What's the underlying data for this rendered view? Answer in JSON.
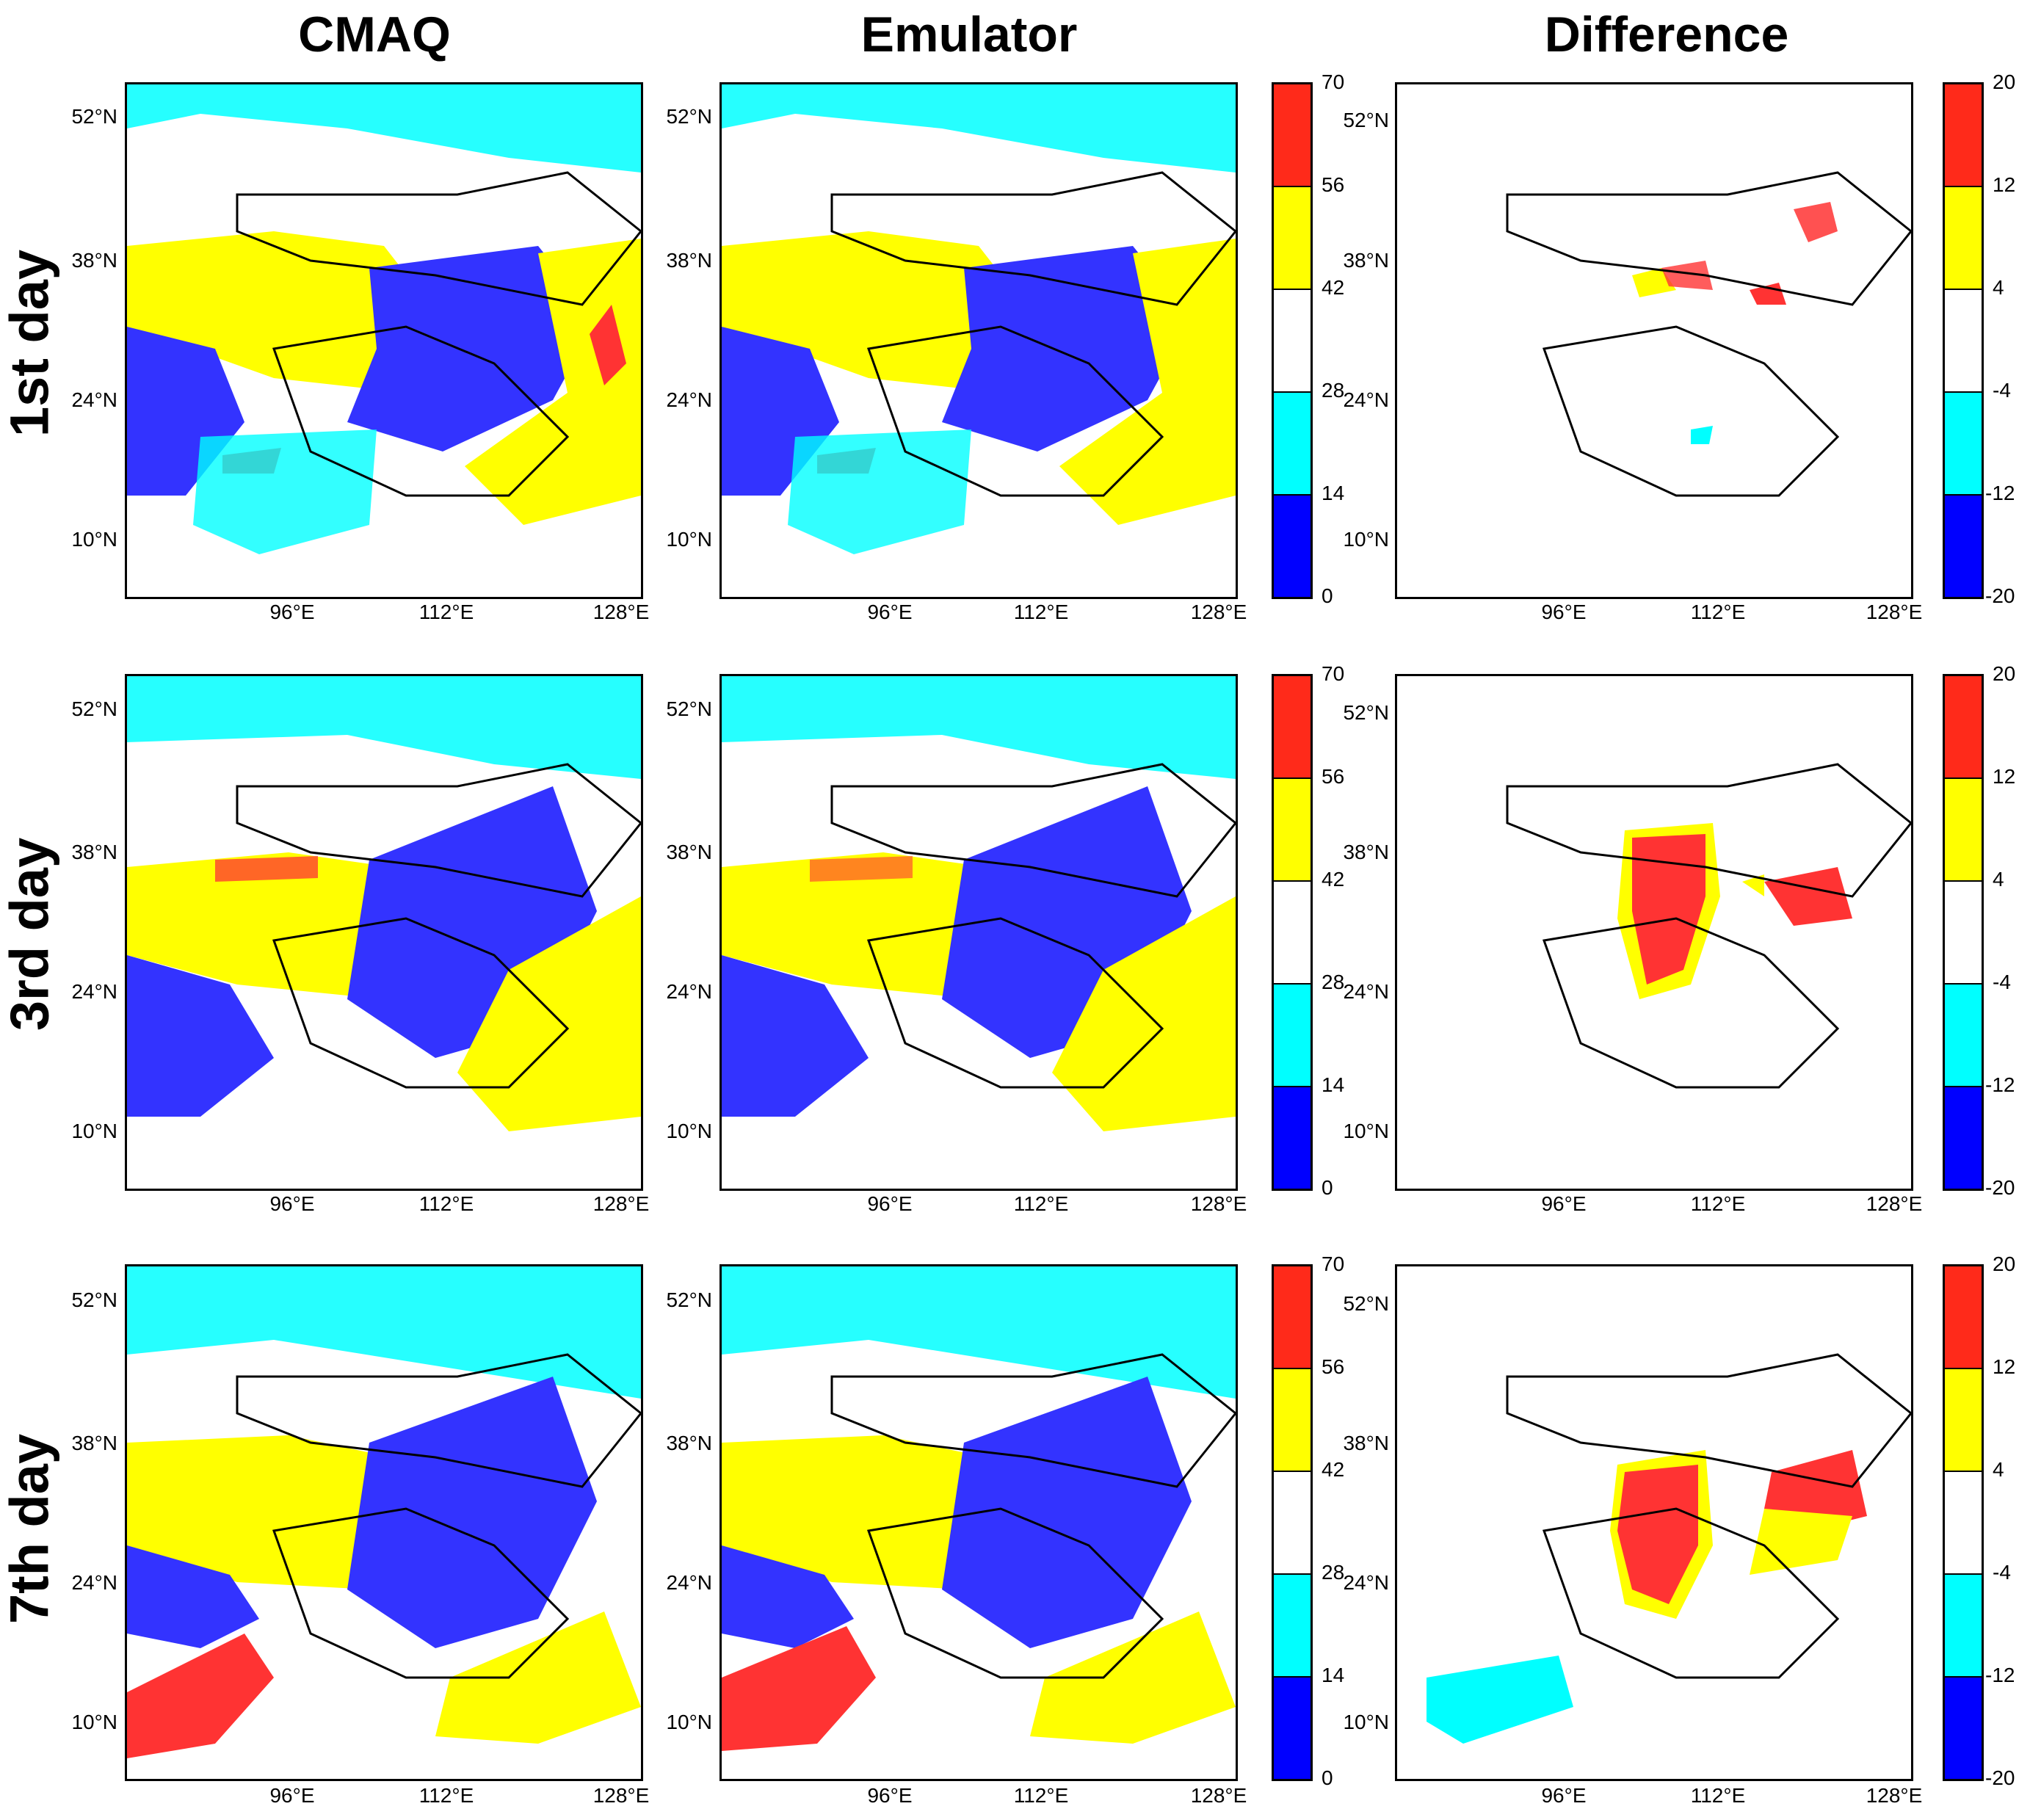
{
  "columns": [
    "CMAQ",
    "Emulator",
    "Difference"
  ],
  "rows": [
    "1st day",
    "3rd day",
    "7th day"
  ],
  "lat_labels": [
    "52°N",
    "38°N",
    "24°N",
    "10°N"
  ],
  "lon_labels": [
    "96°E",
    "112°E",
    "128°E"
  ],
  "concentration_colorbar": {
    "ticks": [
      "70",
      "56",
      "42",
      "28",
      "14",
      "0"
    ],
    "colors": [
      "#ff2a1a",
      "#ffff00",
      "#ffffff",
      "#00ffff",
      "#0000ff"
    ]
  },
  "difference_colorbar": {
    "ticks": [
      "20",
      "12",
      "4",
      "-4",
      "-12",
      "-20"
    ],
    "colors": [
      "#ff2a1a",
      "#ffff00",
      "#ffffff",
      "#00ffff",
      "#0000ff"
    ]
  },
  "field_colors": {
    "ocean_yellow": "#ffff00",
    "dark_blue": "#3333ff",
    "cyan": "#00ffff",
    "red": "#ff3333"
  }
}
